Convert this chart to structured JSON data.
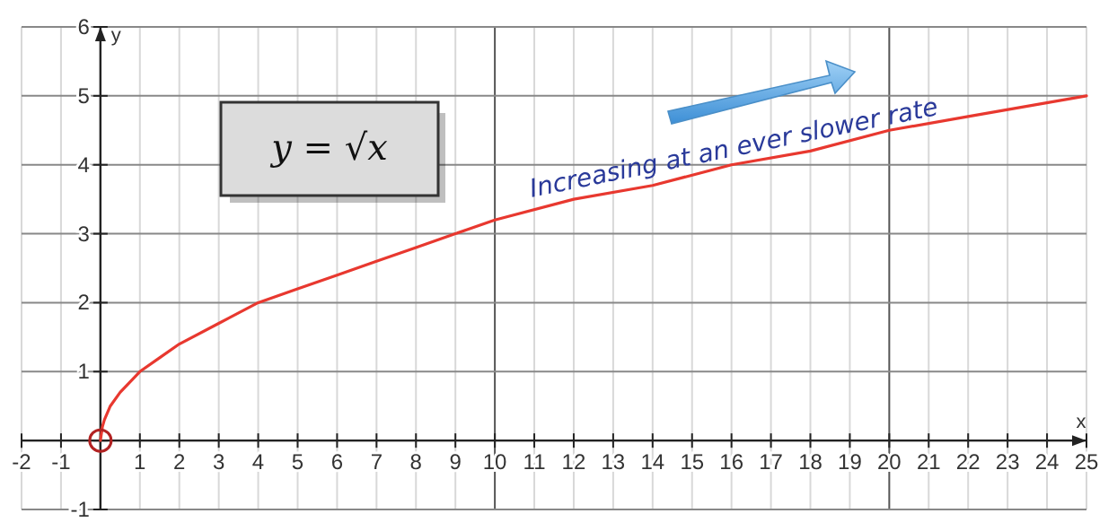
{
  "chart_data": {
    "type": "line",
    "xlabel": "x",
    "ylabel": "y",
    "xlim": [
      -2,
      25
    ],
    "ylim": [
      -1,
      6
    ],
    "xticks": [
      -2,
      -1,
      {
        "value": 0,
        "label": null
      },
      1,
      2,
      3,
      4,
      5,
      6,
      7,
      8,
      9,
      10,
      11,
      12,
      13,
      14,
      15,
      16,
      17,
      18,
      19,
      20,
      21,
      22,
      23,
      24,
      25
    ],
    "yticks": [
      -1,
      {
        "value": 0,
        "label": null
      },
      1,
      2,
      3,
      4,
      5,
      6
    ],
    "grid": true,
    "series": [
      {
        "color": "#e8382f",
        "marker": "none",
        "x": [
          0,
          0.05,
          0.1,
          0.25,
          0.5,
          1,
          1.5,
          2,
          3,
          4,
          5,
          6,
          7,
          8,
          9,
          10,
          12,
          14,
          16,
          18,
          20,
          22,
          25
        ],
        "values": [
          0,
          0.2,
          0.3,
          0.5,
          0.7,
          1,
          1.2,
          1.4,
          1.7,
          2,
          2.2,
          2.4,
          2.6,
          2.8,
          3,
          3.2,
          3.5,
          3.7,
          4,
          4.2,
          4.5,
          4.7,
          5
        ]
      },
      {
        "type": "scatter",
        "color": "#b22222",
        "marker": "circle",
        "x": [
          0
        ],
        "values": [
          0
        ]
      }
    ],
    "annotations": [
      "y = √x",
      "Increasing at an ever slower rate"
    ]
  }
}
